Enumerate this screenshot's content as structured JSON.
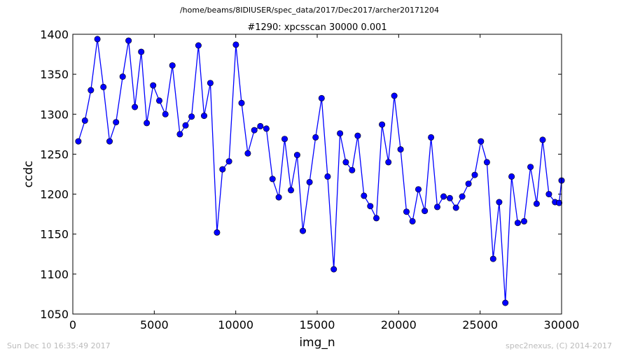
{
  "header": {
    "path": "/home/beams/8IDIUSER/spec_data/2017/Dec2017/archer20171204"
  },
  "footer": {
    "timestamp": "Sun Dec 10 16:35:49 2017",
    "credit": "spec2nexus, (C) 2014-2017"
  },
  "chart_data": {
    "type": "line",
    "title": "#1290: xpcsscan 30000 0.001",
    "xlabel": "img_n",
    "ylabel": "ccdc",
    "xlim": [
      0,
      30000
    ],
    "ylim": [
      1050,
      1400
    ],
    "xticks": [
      0,
      5000,
      10000,
      15000,
      20000,
      25000,
      30000
    ],
    "yticks": [
      1050,
      1100,
      1150,
      1200,
      1250,
      1300,
      1350,
      1400
    ],
    "grid": false,
    "line_color": "#0000ff",
    "marker": "circle",
    "x": [
      340,
      745,
      1110,
      1510,
      1880,
      2255,
      2650,
      3060,
      3420,
      3810,
      4200,
      4540,
      4930,
      5310,
      5680,
      6110,
      6570,
      6920,
      7290,
      7710,
      8060,
      8440,
      8850,
      9190,
      9590,
      10010,
      10360,
      10740,
      11140,
      11510,
      11880,
      12260,
      12640,
      13000,
      13390,
      13770,
      14120,
      14530,
      14900,
      15270,
      15640,
      16020,
      16400,
      16760,
      17140,
      17490,
      17870,
      18260,
      18630,
      18980,
      19370,
      19730,
      20120,
      20480,
      20850,
      21210,
      21600,
      21990,
      22370,
      22760,
      23140,
      23520,
      23900,
      24290,
      24670,
      25050,
      25420,
      25800,
      26170,
      26550,
      26930,
      27310,
      27700,
      28090,
      28470,
      28840,
      29220,
      29600,
      29850,
      30000
    ],
    "y": [
      1266,
      1292,
      1330,
      1394,
      1334,
      1266,
      1290,
      1347,
      1392,
      1309,
      1378,
      1289,
      1336,
      1317,
      1300,
      1361,
      1275,
      1286,
      1297,
      1386,
      1298,
      1339,
      1152,
      1231,
      1241,
      1387,
      1314,
      1251,
      1280,
      1285,
      1282,
      1219,
      1196,
      1269,
      1205,
      1249,
      1154,
      1215,
      1271,
      1320,
      1222,
      1106,
      1276,
      1240,
      1230,
      1273,
      1198,
      1185,
      1170,
      1287,
      1240,
      1323,
      1256,
      1178,
      1166,
      1206,
      1179,
      1271,
      1184,
      1197,
      1195,
      1183,
      1197,
      1213,
      1224,
      1266,
      1240,
      1119,
      1190,
      1064,
      1222,
      1164,
      1166,
      1234,
      1188,
      1268,
      1200,
      1190,
      1189,
      1217
    ]
  }
}
